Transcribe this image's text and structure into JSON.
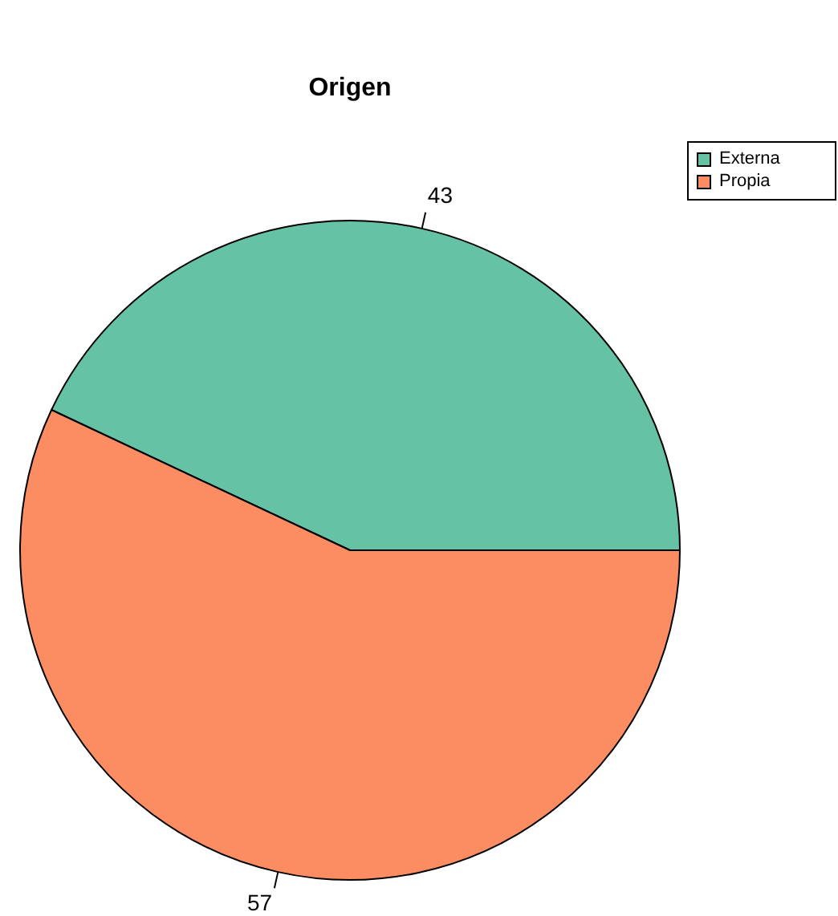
{
  "chart_data": {
    "type": "pie",
    "title": "Origen",
    "categories": [
      "Externa",
      "Propia"
    ],
    "values": [
      43,
      57
    ],
    "colors": [
      "#66c2a5",
      "#fc8d62"
    ],
    "data_labels": true,
    "legend": "top right"
  }
}
